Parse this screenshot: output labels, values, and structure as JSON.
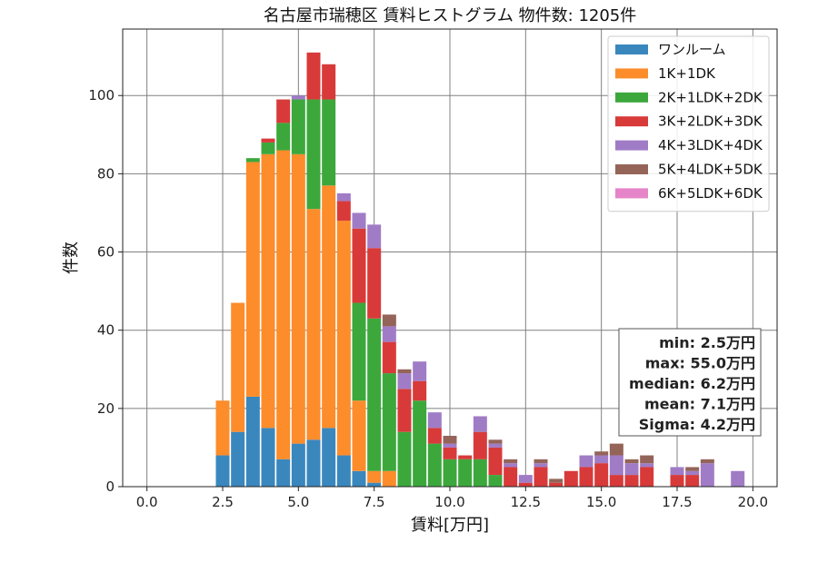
{
  "chart_data": {
    "type": "bar",
    "stacked": true,
    "title": "名古屋市瑞穂区 賃料ヒストグラム  物件数: 1205件",
    "xlabel": "賃料[万円]",
    "ylabel": "件数",
    "xlim": [
      -0.8,
      20.8
    ],
    "ylim": [
      0,
      117
    ],
    "xticks": [
      "0.0",
      "2.5",
      "5.0",
      "7.5",
      "10.0",
      "12.5",
      "15.0",
      "17.5",
      "20.0"
    ],
    "yticks": [
      "0",
      "20",
      "40",
      "60",
      "80",
      "100"
    ],
    "grid": true,
    "legend_position": "top-right",
    "bin_width": 0.5,
    "bar_width": 0.45,
    "x": [
      2.5,
      3.0,
      3.5,
      4.0,
      4.5,
      5.0,
      5.5,
      6.0,
      6.5,
      7.0,
      7.5,
      8.0,
      8.5,
      9.0,
      9.5,
      10.0,
      10.5,
      11.0,
      11.5,
      12.0,
      12.5,
      13.0,
      13.5,
      14.0,
      14.5,
      15.0,
      15.5,
      16.0,
      16.5,
      17.0,
      17.5,
      18.0,
      18.5,
      19.0,
      19.5
    ],
    "series": [
      {
        "name": "ワンルーム",
        "color": "#3a87be",
        "values": [
          8,
          14,
          23,
          15,
          7,
          11,
          12,
          15,
          8,
          4,
          1,
          0,
          0,
          0,
          0,
          0,
          0,
          0,
          0,
          0,
          0,
          0,
          0,
          0,
          0,
          0,
          0,
          0,
          0,
          0,
          0,
          0,
          0,
          0,
          0
        ]
      },
      {
        "name": "1K+1DK",
        "color": "#fd8c2b",
        "values": [
          14,
          33,
          60,
          70,
          79,
          74,
          59,
          62,
          60,
          18,
          3,
          4,
          0,
          0,
          0,
          0,
          0,
          0,
          0,
          0,
          0,
          0,
          0,
          0,
          0,
          0,
          0,
          0,
          0,
          0,
          0,
          0,
          0,
          0,
          0
        ]
      },
      {
        "name": "2K+1LDK+2DK",
        "color": "#3ca83c",
        "values": [
          0,
          0,
          1,
          3,
          7,
          14,
          28,
          22,
          0,
          25,
          39,
          25,
          14,
          22,
          11,
          7,
          7,
          7,
          3,
          0,
          0,
          0,
          0,
          0,
          0,
          0,
          0,
          0,
          0,
          0,
          0,
          0,
          0,
          0,
          0
        ]
      },
      {
        "name": "3K+2LDK+3DK",
        "color": "#d83a3a",
        "values": [
          0,
          0,
          0,
          1,
          6,
          0,
          12,
          9,
          5,
          19,
          18,
          8,
          11,
          5,
          4,
          3,
          1,
          7,
          7,
          5,
          1,
          5,
          1,
          4,
          5,
          6,
          3,
          3,
          5,
          0,
          3,
          3,
          0,
          0,
          0
        ]
      },
      {
        "name": "4K+3LDK+4DK",
        "color": "#a07cc6",
        "values": [
          0,
          0,
          0,
          0,
          0,
          1,
          0,
          0,
          2,
          4,
          6,
          4,
          4,
          5,
          4,
          1,
          0,
          4,
          1,
          1,
          2,
          1,
          0,
          0,
          3,
          2,
          5,
          3,
          1,
          0,
          2,
          1,
          6,
          0,
          4
        ]
      },
      {
        "name": "5K+4LDK+5DK",
        "color": "#946459",
        "values": [
          0,
          0,
          0,
          0,
          0,
          0,
          0,
          0,
          0,
          0,
          0,
          3,
          1,
          0,
          0,
          2,
          0,
          0,
          1,
          1,
          0,
          1,
          1,
          0,
          0,
          1,
          3,
          1,
          2,
          0,
          0,
          1,
          1,
          0,
          0
        ]
      },
      {
        "name": "6K+5LDK+6DK",
        "color": "#e584c8",
        "values": [
          0,
          0,
          0,
          0,
          0,
          0,
          0,
          0,
          0,
          0,
          0,
          0,
          0,
          0,
          0,
          0,
          0,
          0,
          0,
          0,
          0,
          0,
          0,
          0,
          0,
          0,
          0,
          0,
          0,
          0,
          0,
          0,
          0,
          0,
          0
        ]
      }
    ],
    "stats": [
      "min: 2.5万円",
      "max: 55.0万円",
      "median: 6.2万円",
      "mean: 7.1万円",
      "Sigma: 4.2万円"
    ]
  }
}
